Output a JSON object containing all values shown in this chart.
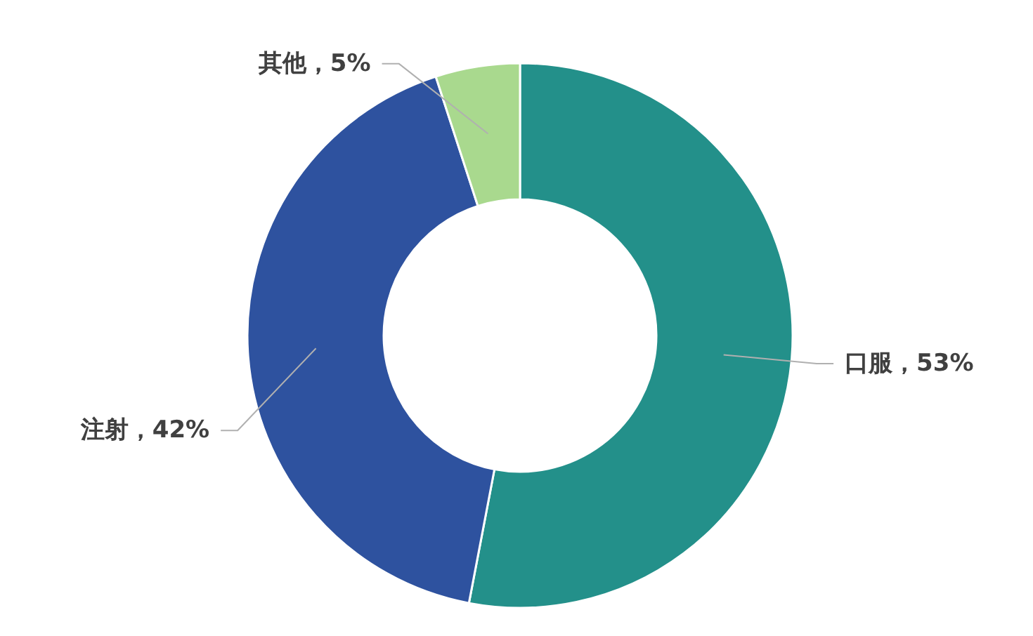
{
  "chart_data": {
    "type": "donut",
    "categories": [
      "口服",
      "注射",
      "其他"
    ],
    "values": [
      53,
      42,
      5
    ],
    "colors": [
      "#23908a",
      "#2e529f",
      "#a9d98e"
    ],
    "value_labels": [
      "53%",
      "42%",
      "5%"
    ]
  }
}
